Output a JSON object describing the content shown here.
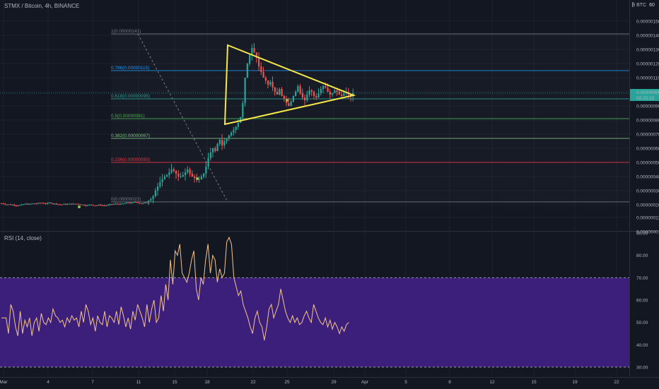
{
  "header": {
    "symbol": "STMX / Bitcoin, 4h, BINANCE",
    "currency_symbol": "₿ BTC",
    "scale_unit": "60"
  },
  "rsi": {
    "title": "RSI (14, close)"
  },
  "price_axis": {
    "labels": [
      "0.00000150",
      "0.00000140",
      "0.00000130",
      "0.00000120",
      "0.00000110",
      "0.00000100",
      "0.00000090",
      "0.00000080",
      "0.00000070",
      "0.00000060",
      "0.00000050",
      "0.00000040",
      "0.00000030",
      "0.00000020",
      "0.00000011",
      "0.00000001"
    ],
    "current_price": "0.00000099",
    "countdown": "02:25:22"
  },
  "rsi_axis": {
    "labels": [
      "90.00",
      "80.00",
      "70.00",
      "60.00",
      "50.00",
      "40.00",
      "30.00"
    ]
  },
  "time_axis": {
    "labels": [
      "Mar",
      "4",
      "7",
      "11",
      "15",
      "18",
      "22",
      "25",
      "29",
      "Apr",
      "5",
      "8",
      "12",
      "15",
      "19",
      "22"
    ]
  },
  "fib_levels": [
    {
      "label": "1(0.00000141)",
      "ratio": 1,
      "value": 1.41e-06,
      "color": "#787b86"
    },
    {
      "label": "0.786(0.00000115)",
      "ratio": 0.786,
      "value": 1.15e-06,
      "color": "#2196f3"
    },
    {
      "label": "0.618(0.00000095)",
      "ratio": 0.618,
      "value": 9.5e-07,
      "color": "#26a69a"
    },
    {
      "label": "0.5(0.00000081)",
      "ratio": 0.5,
      "value": 8.1e-07,
      "color": "#4caf50"
    },
    {
      "label": "0.382(0.00000067)",
      "ratio": 0.382,
      "value": 6.7e-07,
      "color": "#81c784"
    },
    {
      "label": "0.236(0.00000050)",
      "ratio": 0.236,
      "value": 5e-07,
      "color": "#f23645"
    },
    {
      "label": "0(0.00000022)",
      "ratio": 0,
      "value": 2.2e-07,
      "color": "#787b86"
    }
  ],
  "colors": {
    "background": "#131722",
    "up": "#26a69a",
    "down": "#ef5350",
    "triangle": "#f5e84a",
    "rsi_band": "#3b1f7a",
    "rsi_line": "#f6c68a",
    "current_price_tag": "#26a69a"
  },
  "chart_data": {
    "type": "candlestick",
    "symbol": "STMX/BTC",
    "timeframe": "4h",
    "y_range": [
      1e-08,
      1.5e-06
    ],
    "fib_retracement": [
      1.41e-06,
      1.15e-06,
      9.5e-07,
      8.1e-07,
      6.7e-07,
      5e-07,
      2.2e-07
    ],
    "rsi_range": [
      30,
      90
    ],
    "rsi_band": [
      30,
      70
    ],
    "current_price": 9.9e-07
  }
}
